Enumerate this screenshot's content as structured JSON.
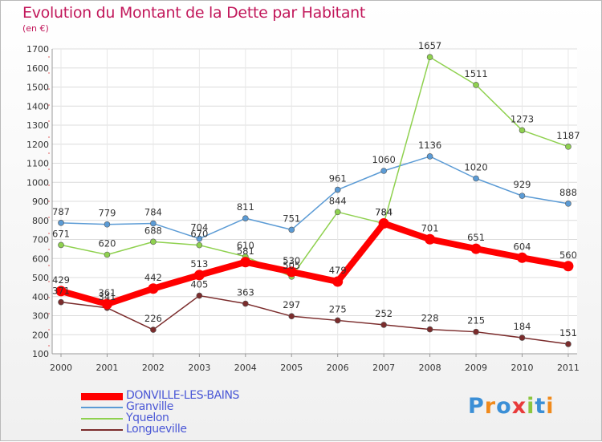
{
  "page": {
    "title": "Evolution du Montant de la Dette par Habitant",
    "unit": "(en €)",
    "logo": "Proxiti"
  },
  "chart_data": {
    "type": "line",
    "title": "Evolution du Montant de la Dette par Habitant",
    "ylabel": "(en €)",
    "xlabel": "",
    "ylim": [
      100,
      1700
    ],
    "yticks": [
      100,
      200,
      300,
      400,
      500,
      600,
      700,
      800,
      900,
      1000,
      1100,
      1200,
      1300,
      1400,
      1500,
      1600,
      1700
    ],
    "categories": [
      "2000",
      "2001",
      "2002",
      "2003",
      "2004",
      "2005",
      "2006",
      "2007",
      "2008",
      "2009",
      "2010",
      "2011"
    ],
    "grid": true,
    "legend_position": "bottom-left",
    "series": [
      {
        "name": "DONVILLE-LES-BAINS",
        "color": "#ff0000",
        "values": [
          429,
          361,
          442,
          513,
          581,
          530,
          479,
          784,
          701,
          651,
          604,
          560
        ]
      },
      {
        "name": "Granville",
        "color": "#5b9bd5",
        "values": [
          787,
          779,
          784,
          704,
          811,
          751,
          961,
          1060,
          1136,
          1020,
          929,
          888
        ]
      },
      {
        "name": "Yquelon",
        "color": "#8fd14f",
        "values": [
          671,
          620,
          688,
          670,
          610,
          505,
          844,
          784,
          1657,
          1511,
          1273,
          1187
        ]
      },
      {
        "name": "Longueville",
        "color": "#7b2c2c",
        "values": [
          371,
          341,
          226,
          405,
          363,
          297,
          275,
          252,
          228,
          215,
          184,
          151
        ]
      }
    ]
  }
}
